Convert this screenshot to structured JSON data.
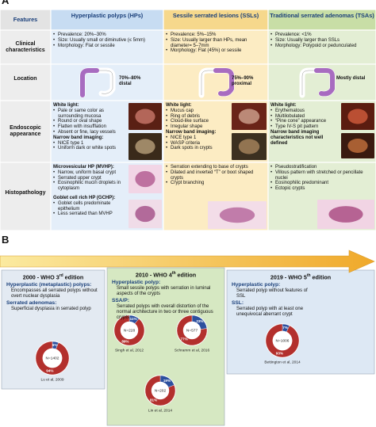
{
  "panel_a": {
    "label": "A",
    "headers": [
      "Features",
      "Hyperplastic polyps (HPs)",
      "Sessile serrated lesions (SSLs)",
      "Traditional serrated adenomas (TSAs)"
    ],
    "rows": [
      {
        "feature": "Clinical characteristics",
        "cells": [
          {
            "groups": [
              {
                "items": [
                  "Prevalence: 20%–30%",
                  "Size: Usually small or diminutive (≤ 5mm)",
                  "Morphology: Flat or sessile"
                ]
              }
            ]
          },
          {
            "groups": [
              {
                "items": [
                  "Prevalence: 5%–15%",
                  "Size: Usually larger than HPs, mean diameter= 5–7mm",
                  "Morphology: Flat (45%) or sessile"
                ]
              }
            ]
          },
          {
            "groups": [
              {
                "items": [
                  "Prevalence: <1%",
                  "Size: Usually larger than SSLs",
                  "Morphology: Polypoid or pedunculated"
                ]
              }
            ]
          }
        ]
      },
      {
        "feature": "Location",
        "cells": [
          {
            "location": "70%–80% distal"
          },
          {
            "location": "75%–90% proximal"
          },
          {
            "location": "Mostly distal"
          }
        ]
      },
      {
        "feature": "Endoscopic appearance",
        "cells": [
          {
            "groups": [
              {
                "heading": "White light:",
                "items": [
                  "Pale or same color as surrounding mucosa",
                  "Round or oval shape",
                  "Flatten with insufflation",
                  "Absent or fine, lacy vessels"
                ]
              },
              {
                "heading": "Narrow band imaging:",
                "items": [
                  "NICE type 1",
                  "Uniform dark or white spots"
                ]
              }
            ]
          },
          {
            "groups": [
              {
                "heading": "White light:",
                "items": [
                  "Mucus cap",
                  "Ring of debris",
                  "Cloud-like surface",
                  "Irregular shape"
                ]
              },
              {
                "heading": "Narrow band imaging:",
                "items": [
                  "NICE type 1",
                  "WASP criteria",
                  "Dark spots in crypts"
                ]
              }
            ]
          },
          {
            "groups": [
              {
                "heading": "White light:",
                "items": [
                  "Erythematous",
                  "Multilobulated",
                  "“Pine cone” appearance",
                  "Type IV-S pit pattern"
                ]
              },
              {
                "heading": "Narrow band imaging characteristics not well defined"
              }
            ]
          }
        ]
      },
      {
        "feature": "Histopathology",
        "cells": [
          {
            "groups": [
              {
                "heading": "Microvesicular HP (MVHP):",
                "items": [
                  "Narrow, uniform basal crypt",
                  "Serrated upper crypt",
                  "Eosinophilic mucin droplets in cytoplasm"
                ]
              },
              {
                "heading": "Goblet cell rich HP (GCHP):",
                "items": [
                  "Goblet cells predominate epithelium",
                  "Less serrated than MVHP"
                ]
              }
            ]
          },
          {
            "groups": [
              {
                "items": [
                  "Serration extending to base of crypts",
                  "Dilated and inverted “T” or boot shaped crypts",
                  "Crypt branching"
                ]
              }
            ]
          },
          {
            "groups": [
              {
                "items": [
                  "Pseudostratification",
                  "Villous pattern with stretched or pencillate nuclei",
                  "Eosinophilic predominant",
                  "Ectopic crypts"
                ]
              }
            ]
          }
        ]
      }
    ]
  },
  "panel_b": {
    "label": "B",
    "segment_colors": [
      "#2c4f9e",
      "#b3302d"
    ],
    "editions": [
      {
        "title": [
          "2000 - WHO 3",
          "rd",
          " edition"
        ],
        "sections": [
          {
            "heading": "Hyperplastic (metaplastic) polyps:",
            "text": "Encompasses all serrated polyps without overt nuclear dysplasia"
          },
          {
            "heading": "Serrated adenomas:",
            "text": "Superficial dysplasia in serrated polyp"
          }
        ],
        "donuts": [
          {
            "n": "N=1402",
            "values": [
              6,
              94
            ],
            "value_labels": [
              "6%",
              "94%"
            ],
            "citation": "Lu et al, 2009"
          }
        ]
      },
      {
        "title": [
          "2010 - WHO 4",
          "th",
          " edition"
        ],
        "sections": [
          {
            "heading": "Hyperplastic polyp:",
            "text": "Small sessile polyps with serration in luminal aspects of the crypts"
          },
          {
            "heading": "SSA/P:",
            "text": "Serrated polyps with overall distortion of the normal architecture in two or three contiguous crypts"
          }
        ],
        "donuts": [
          {
            "n": "N=228",
            "values": [
              11,
              89
            ],
            "value_labels": [
              "11%",
              "89%"
            ],
            "citation": "Singh et al, 2012"
          },
          {
            "n": "N=577",
            "values": [
              23,
              77
            ],
            "value_labels": [
              "23%",
              "77%"
            ],
            "citation": "Schramm et al, 2016"
          },
          {
            "n": "N=202",
            "values": [
              19,
              81
            ],
            "value_labels": [
              "19%",
              "81%"
            ],
            "citation": "Lin et al, 2014"
          }
        ]
      },
      {
        "title": [
          "2019 - WHO 5",
          "th",
          " edition"
        ],
        "sections": [
          {
            "heading": "Hyperplastic polyp:",
            "text": "Serrated polyp without features of SSL"
          },
          {
            "heading": "SSL:",
            "text": "Serrated polyp with at least one unequivocal aberrant crypt"
          }
        ],
        "donuts": [
          {
            "n": "N=1006",
            "values": [
              7,
              93
            ],
            "value_labels": [
              "7%",
              "93%"
            ],
            "citation": "Bettington et al, 2014"
          }
        ]
      }
    ]
  }
}
